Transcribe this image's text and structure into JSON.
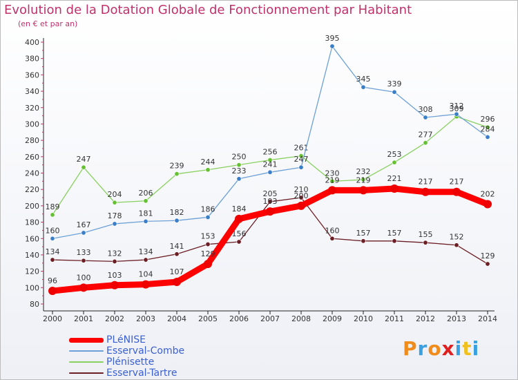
{
  "header": {
    "title": "Evolution de la Dotation Globale de Fonctionnement par Habitant",
    "subtitle": "(en € et par an)"
  },
  "logo": {
    "letters": [
      "P",
      "r",
      "o",
      "x",
      "i",
      "t",
      "i"
    ],
    "colors": [
      "#f08c1c",
      "#3aa0e0",
      "#f08c1c",
      "#e02020",
      "#3aa0e0",
      "#f0c020",
      "#3aa0e0"
    ]
  },
  "chart_data": {
    "type": "line",
    "x": [
      "2000",
      "2001",
      "2002",
      "2003",
      "2004",
      "2005",
      "2006",
      "2007",
      "2008",
      "2009",
      "2010",
      "2011",
      "2012",
      "2013",
      "2014"
    ],
    "ylim": [
      80,
      400
    ],
    "yticks": [
      80,
      100,
      120,
      140,
      160,
      180,
      200,
      220,
      240,
      260,
      280,
      300,
      320,
      340,
      360,
      380,
      400
    ],
    "grid": false,
    "legend_position": "bottom-left",
    "series": [
      {
        "name": "Esserval-Tartre",
        "color": "#6b1e24",
        "point_color": "#6b1e24",
        "values": [
          134,
          133,
          132,
          134,
          141,
          153,
          156,
          205,
          210,
          160,
          157,
          157,
          155,
          152,
          129
        ],
        "labels": [
          "134",
          "133",
          "132",
          "134",
          "141",
          "153",
          "156",
          "205",
          "210",
          "160",
          "157",
          "157",
          "155",
          "152",
          "129"
        ]
      },
      {
        "name": "Plénisette",
        "color": "#88d060",
        "point_color": "#66c033",
        "values": [
          189,
          247,
          204,
          206,
          239,
          244,
          250,
          256,
          261,
          230,
          232,
          253,
          277,
          309,
          296
        ],
        "labels": [
          "189",
          "247",
          "204",
          "206",
          "239",
          "244",
          "250",
          "256",
          "261",
          "230",
          "232",
          "253",
          "277",
          "309",
          "296"
        ]
      },
      {
        "name": "Esserval-Combe",
        "color": "#6ca0d6",
        "point_color": "#3a7ec8",
        "values": [
          160,
          167,
          178,
          181,
          182,
          186,
          233,
          241,
          247,
          395,
          345,
          339,
          308,
          312,
          284
        ],
        "labels": [
          "160",
          "167",
          "178",
          "181",
          "182",
          "186",
          "233",
          "241",
          "247",
          "395",
          "345",
          "339",
          "308",
          "312",
          "284"
        ]
      },
      {
        "name": "PLéNISE",
        "color": "#ff0000",
        "point_color": "#ee0000",
        "values": [
          96,
          100,
          103,
          104,
          107,
          129,
          184,
          193,
          200,
          219,
          219,
          221,
          217,
          217,
          202
        ],
        "labels": [
          "96",
          "100",
          "103",
          "104",
          "107",
          "129",
          "184",
          "193",
          "200",
          "219",
          "219",
          "221",
          "217",
          "217",
          "202"
        ]
      }
    ],
    "legend": [
      "PLéNISE",
      "Esserval-Combe",
      "Plénisette",
      "Esserval-Tartre"
    ]
  }
}
